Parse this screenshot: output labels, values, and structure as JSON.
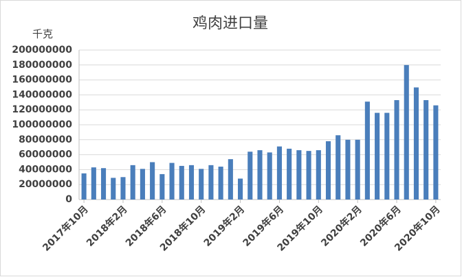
{
  "chart_data": {
    "type": "bar",
    "title": "鸡肉进口量",
    "y_label": "千克",
    "categories": [
      "2017年10月",
      null,
      null,
      null,
      "2018年2月",
      null,
      null,
      null,
      "2018年6月",
      null,
      null,
      null,
      "2018年10月",
      null,
      null,
      null,
      "2019年2月",
      null,
      null,
      null,
      "2019年6月",
      null,
      null,
      null,
      "2019年10月",
      null,
      null,
      null,
      "2020年2月",
      null,
      null,
      null,
      "2020年6月",
      null,
      null,
      null,
      "2020年10月"
    ],
    "values": [
      35000000,
      43000000,
      42000000,
      29000000,
      30000000,
      46000000,
      41000000,
      50000000,
      34000000,
      49000000,
      45000000,
      46000000,
      41000000,
      46000000,
      44000000,
      54000000,
      28000000,
      64000000,
      66000000,
      63000000,
      71000000,
      68000000,
      66000000,
      65000000,
      66000000,
      78000000,
      86000000,
      80000000,
      80000000,
      131000000,
      116000000,
      116000000,
      133000000,
      180000000,
      150000000,
      133000000,
      126000000
    ],
    "color": "#4a7ebb",
    "ylim": [
      0,
      200000000
    ],
    "yticks": [
      0,
      20000000,
      40000000,
      60000000,
      80000000,
      100000000,
      120000000,
      140000000,
      160000000,
      180000000,
      200000000
    ],
    "grid": true
  }
}
